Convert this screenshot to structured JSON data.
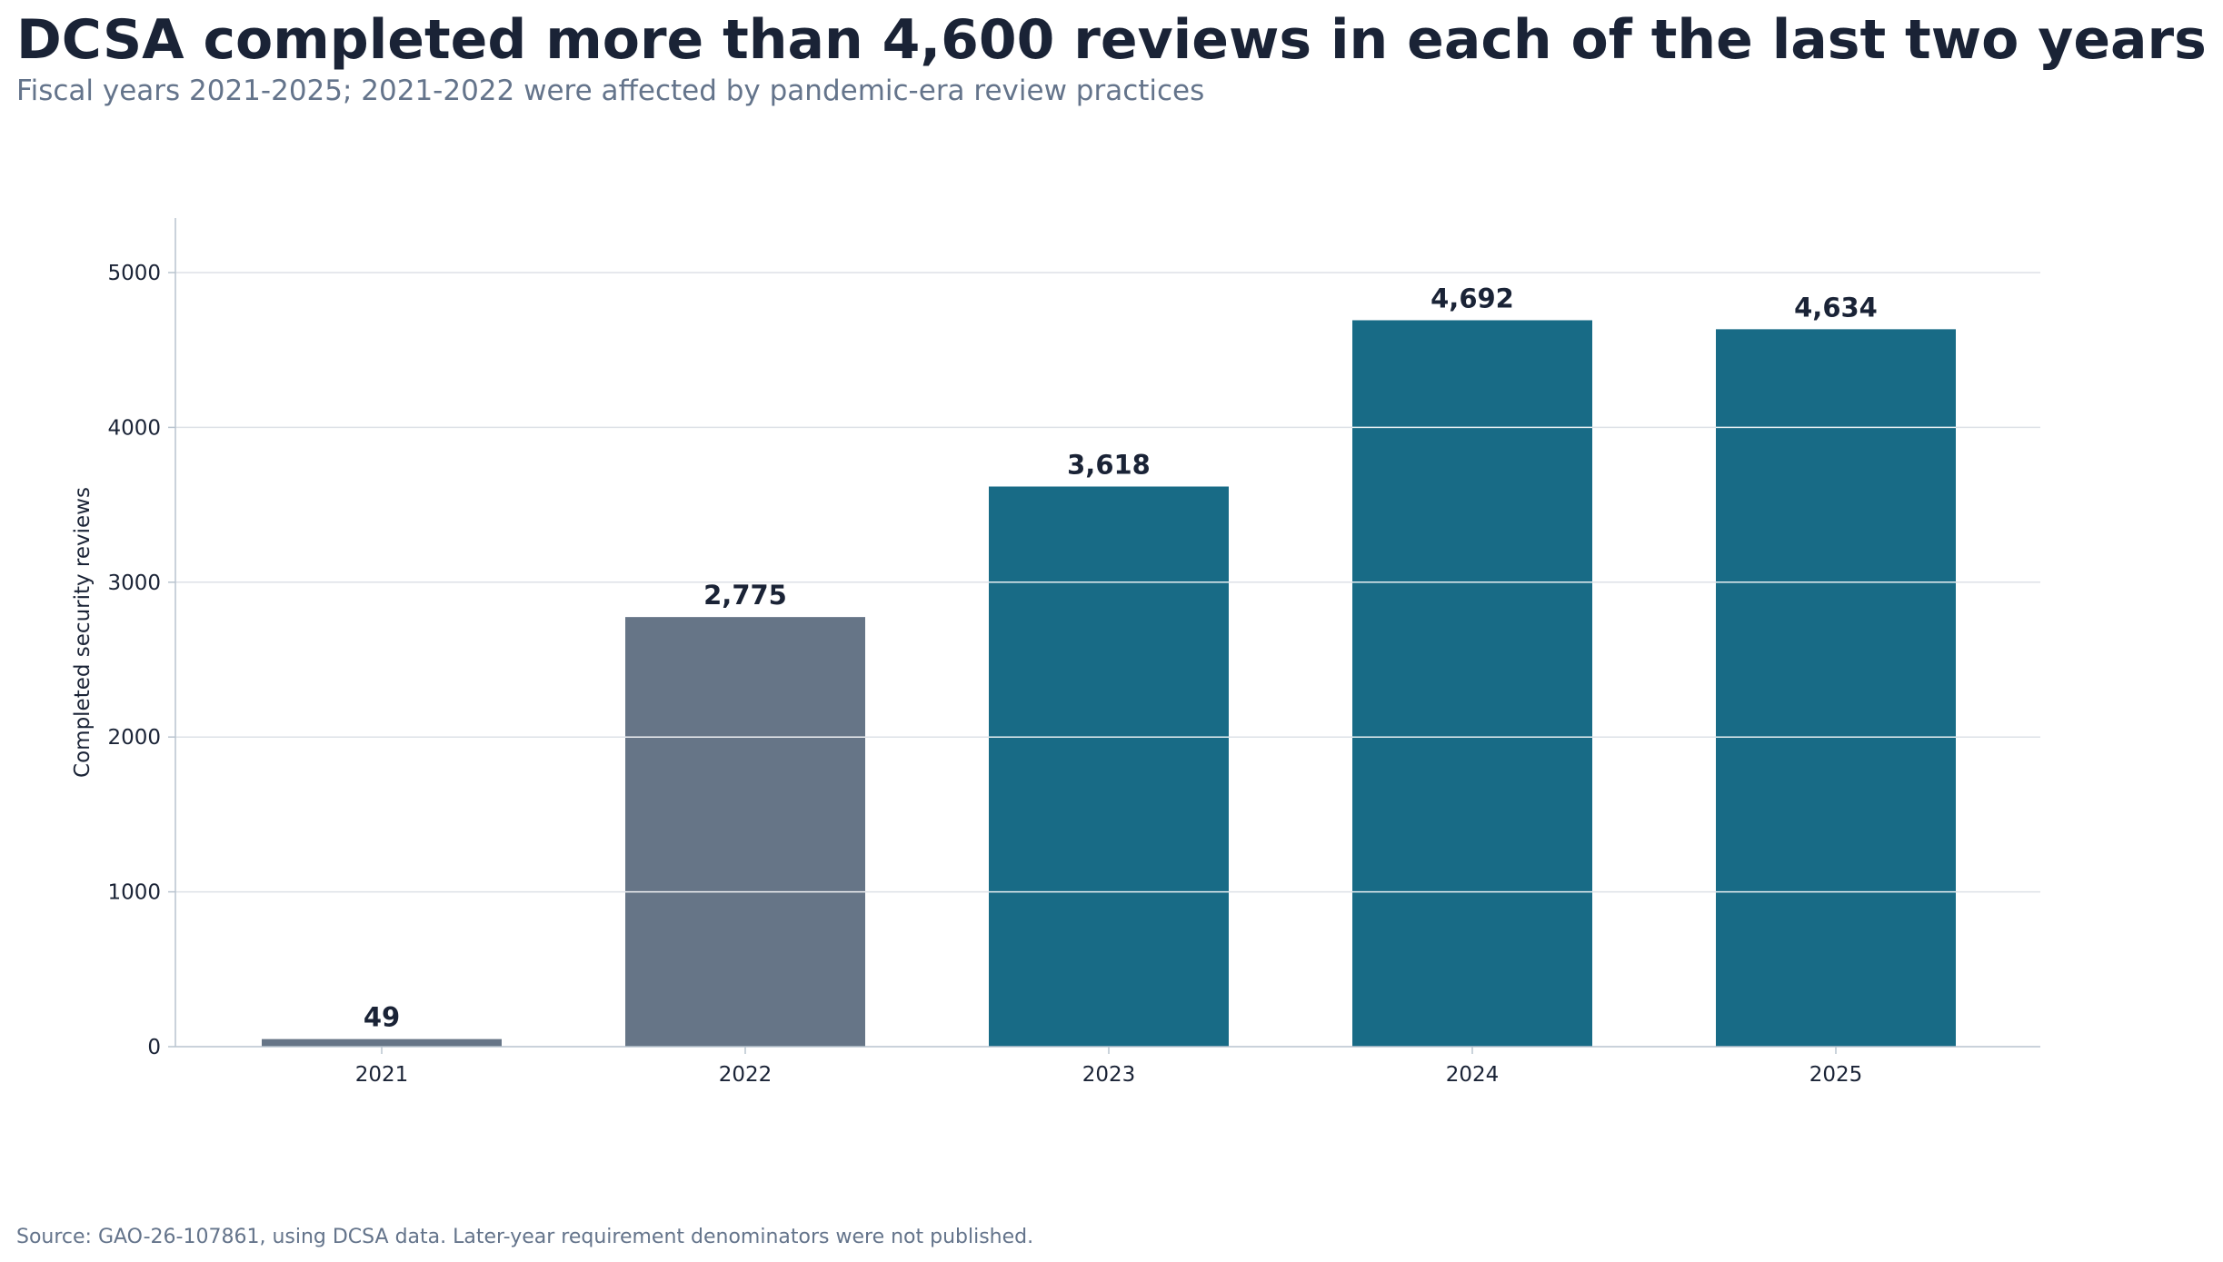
{
  "chart_data": {
    "type": "bar",
    "title": "DCSA completed more than 4,600 reviews in each of the last two years",
    "subtitle": "Fiscal years 2021-2025; 2021-2022 were affected by pandemic-era review practices",
    "xlabel": "",
    "ylabel": "Completed security reviews",
    "categories": [
      "2021",
      "2022",
      "2023",
      "2024",
      "2025"
    ],
    "values": [
      49,
      2775,
      3618,
      4692,
      4634
    ],
    "value_labels": [
      "49",
      "2,775",
      "3,618",
      "4,692",
      "4,634"
    ],
    "bar_colors": [
      "#667587",
      "#667587",
      "#186b86",
      "#186b86",
      "#186b86"
    ],
    "ylim": [
      0,
      5350
    ],
    "yticks": [
      0,
      1000,
      2000,
      3000,
      4000,
      5000
    ],
    "ytick_labels": [
      "0",
      "1000",
      "2000",
      "3000",
      "4000",
      "5000"
    ],
    "grid": "horizontal",
    "legend": "none",
    "source": "Source: GAO-26-107861, using DCSA data. Later-year requirement denominators were not published."
  },
  "colors": {
    "title": "#1a2336",
    "muted_text": "#64748b",
    "gridline": "#dde1e7",
    "axis_line": "#b9c4cf",
    "pandemic_bar": "#667587",
    "standard_bar": "#186b86"
  }
}
